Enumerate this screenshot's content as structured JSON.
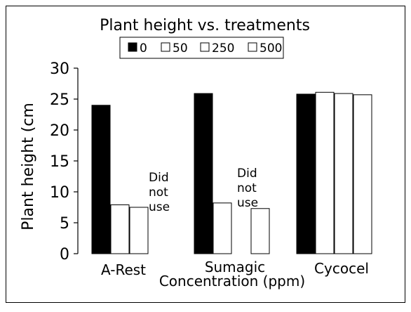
{
  "chart_data": {
    "type": "bar",
    "title": "Plant height vs. treatments",
    "xlabel": "Concentration (ppm)",
    "ylabel": "Plant height (cm",
    "ylim": [
      0,
      30
    ],
    "y_ticks": [
      0,
      5,
      10,
      15,
      20,
      25,
      30
    ],
    "categories": [
      "A-Rest",
      "Sumagic",
      "Cycocel"
    ],
    "series": [
      {
        "name": "0",
        "color": "#000000",
        "values": [
          24.0,
          25.9,
          25.8
        ]
      },
      {
        "name": "50",
        "color": "#ffffff",
        "values": [
          7.9,
          8.2,
          26.1
        ]
      },
      {
        "name": "250",
        "color": "#ffffff",
        "values": [
          7.5,
          null,
          25.9
        ]
      },
      {
        "name": "500",
        "color": "#ffffff",
        "values": [
          null,
          7.3,
          25.7
        ]
      }
    ],
    "annotations": [
      {
        "category": "A-Rest",
        "lines": [
          "Did",
          "not",
          "use"
        ]
      },
      {
        "category": "Sumagic",
        "lines": [
          "Did",
          "not",
          "use"
        ]
      }
    ],
    "legend_position": "top",
    "grid": false
  }
}
